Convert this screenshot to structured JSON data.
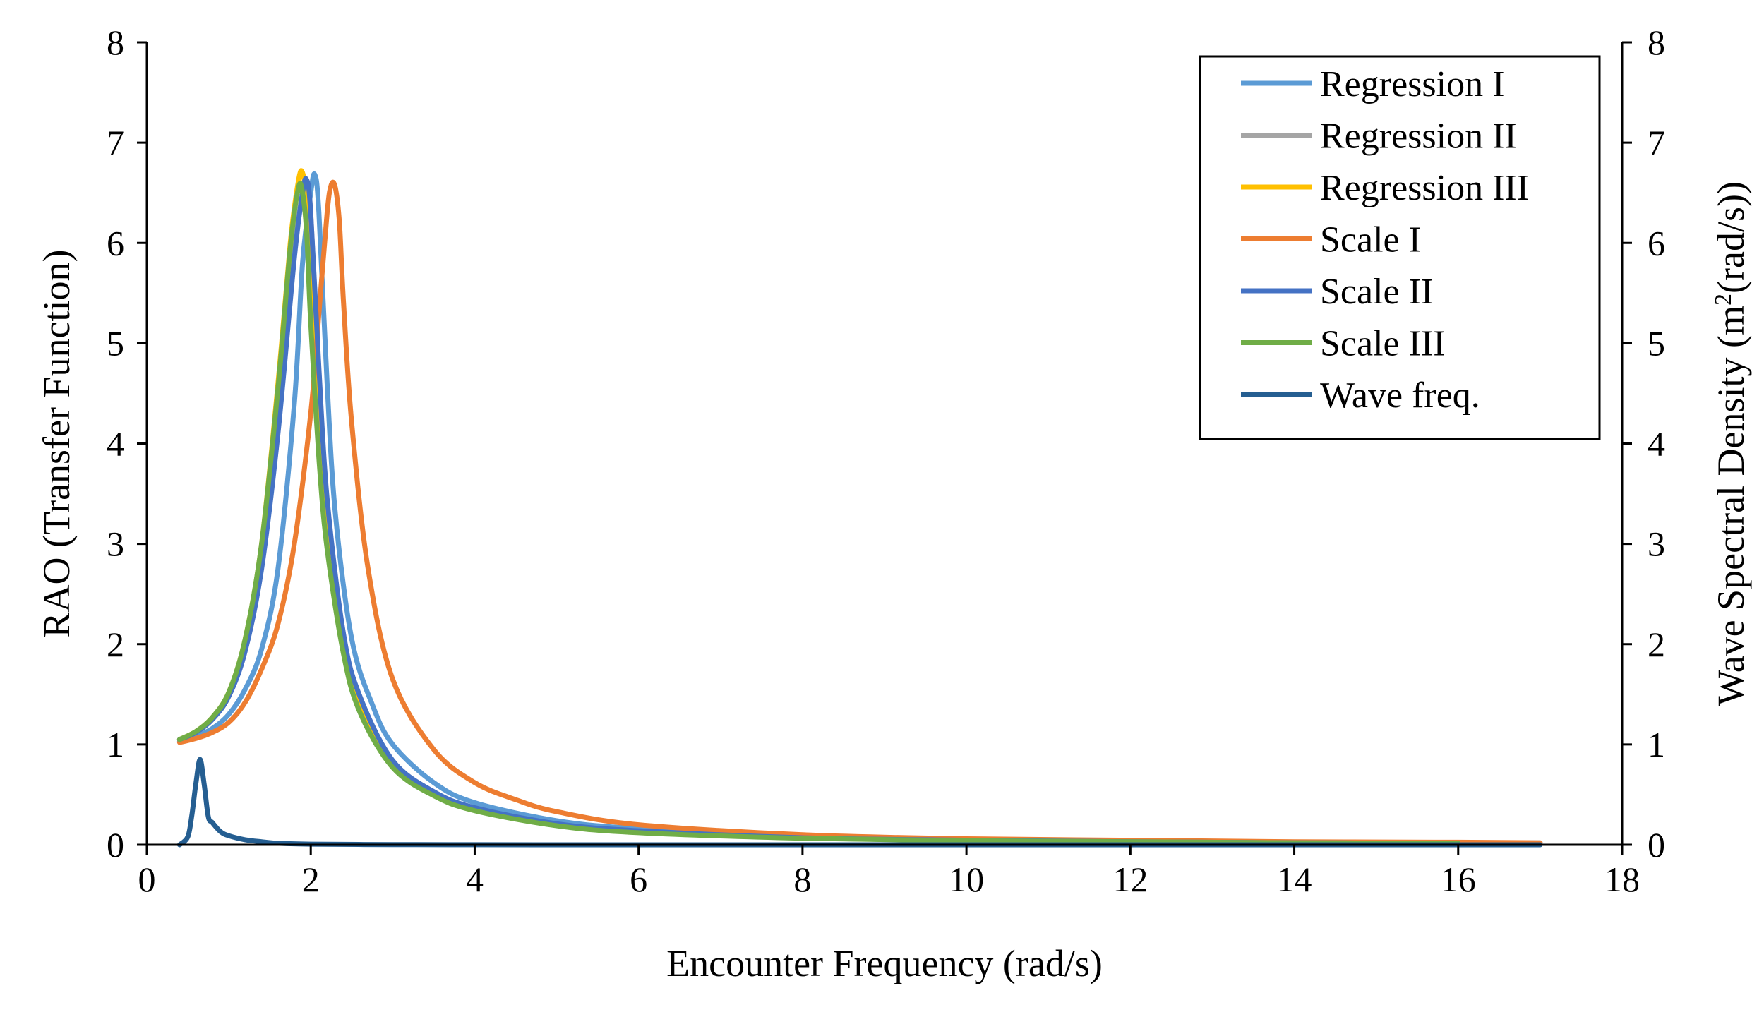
{
  "chart_data": {
    "type": "line",
    "title": "",
    "xlabel": "Encounter Frequency (rad/s)",
    "ylabel": "RAO (Transfer Function)",
    "y2label_main": "Wave Spectral Density (m",
    "y2label_sup": "2",
    "y2label_tail": "(rad/s))",
    "xlim": [
      0,
      18
    ],
    "ylim": [
      0,
      8
    ],
    "y2lim": [
      0,
      8
    ],
    "xticks": [
      0,
      2,
      4,
      6,
      8,
      10,
      12,
      14,
      16,
      18
    ],
    "yticks": [
      0,
      1,
      2,
      3,
      4,
      5,
      6,
      7,
      8
    ],
    "y2ticks": [
      0,
      1,
      2,
      3,
      4,
      5,
      6,
      7,
      8
    ],
    "legend_position": "top-right",
    "series": [
      {
        "name": "Regression I",
        "color": "#5B9BD5",
        "axis": "left",
        "x": [
          0.4,
          0.6,
          0.8,
          1.0,
          1.2,
          1.4,
          1.6,
          1.8,
          1.9,
          2.0,
          2.05,
          2.1,
          2.2,
          2.3,
          2.5,
          2.75,
          3.0,
          3.5,
          4.0,
          5.0,
          6.0,
          8.0,
          10.0,
          12.0,
          14.0,
          16.0,
          17.0
        ],
        "values": [
          1.03,
          1.08,
          1.16,
          1.3,
          1.55,
          1.95,
          2.75,
          4.4,
          5.8,
          6.5,
          6.68,
          6.3,
          4.6,
          3.3,
          2.05,
          1.4,
          1.0,
          0.62,
          0.42,
          0.24,
          0.16,
          0.08,
          0.05,
          0.035,
          0.025,
          0.02,
          0.02
        ]
      },
      {
        "name": "Regression II",
        "color": "#A5A5A5",
        "axis": "left",
        "x": [
          0.4,
          0.6,
          0.8,
          1.0,
          1.2,
          1.4,
          1.6,
          1.8,
          1.9,
          1.95,
          2.0,
          2.1,
          2.2,
          2.4,
          2.6,
          3.0,
          3.5,
          4.0,
          5.0,
          6.0,
          8.0,
          10.0,
          12.0,
          14.0,
          16.0
        ],
        "values": [
          1.05,
          1.12,
          1.25,
          1.48,
          1.95,
          2.8,
          4.2,
          5.9,
          6.5,
          6.6,
          6.3,
          4.7,
          3.4,
          2.05,
          1.45,
          0.82,
          0.52,
          0.36,
          0.2,
          0.13,
          0.07,
          0.04,
          0.03,
          0.02,
          0.015
        ]
      },
      {
        "name": "Regression III",
        "color": "#FFC000",
        "axis": "left",
        "x": [
          0.4,
          0.6,
          0.8,
          1.0,
          1.2,
          1.4,
          1.6,
          1.75,
          1.85,
          1.9,
          1.95,
          2.0,
          2.1,
          2.2,
          2.4,
          2.6,
          3.0,
          3.5,
          4.0,
          5.0,
          6.0,
          8.0,
          10.0,
          12.0,
          14.0,
          16.0
        ],
        "values": [
          1.05,
          1.13,
          1.27,
          1.52,
          2.05,
          3.0,
          4.6,
          6.0,
          6.62,
          6.7,
          6.4,
          5.6,
          4.1,
          3.1,
          1.95,
          1.35,
          0.78,
          0.5,
          0.35,
          0.2,
          0.13,
          0.07,
          0.04,
          0.03,
          0.02,
          0.015
        ]
      },
      {
        "name": "Scale I",
        "color": "#ED7D31",
        "axis": "left",
        "x": [
          0.4,
          0.6,
          0.8,
          1.0,
          1.2,
          1.4,
          1.6,
          1.8,
          2.0,
          2.1,
          2.2,
          2.25,
          2.3,
          2.35,
          2.4,
          2.5,
          2.7,
          3.0,
          3.5,
          4.0,
          4.5,
          5.0,
          6.0,
          8.0,
          10.0,
          12.0,
          14.0,
          16.0,
          17.0
        ],
        "values": [
          1.02,
          1.06,
          1.12,
          1.22,
          1.42,
          1.75,
          2.2,
          3.0,
          4.3,
          5.3,
          6.3,
          6.58,
          6.55,
          6.2,
          5.4,
          4.2,
          2.75,
          1.65,
          0.95,
          0.62,
          0.45,
          0.33,
          0.2,
          0.1,
          0.06,
          0.045,
          0.03,
          0.025,
          0.02
        ]
      },
      {
        "name": "Scale II",
        "color": "#4472C4",
        "axis": "left",
        "x": [
          0.4,
          0.6,
          0.8,
          1.0,
          1.2,
          1.4,
          1.6,
          1.8,
          1.9,
          1.95,
          2.0,
          2.1,
          2.2,
          2.4,
          2.6,
          3.0,
          3.5,
          4.0,
          5.0,
          6.0,
          8.0,
          10.0,
          12.0,
          14.0,
          16.0
        ],
        "values": [
          1.05,
          1.12,
          1.25,
          1.48,
          1.93,
          2.75,
          4.1,
          5.85,
          6.5,
          6.63,
          6.3,
          4.75,
          3.45,
          2.1,
          1.48,
          0.84,
          0.53,
          0.37,
          0.21,
          0.14,
          0.07,
          0.045,
          0.03,
          0.02,
          0.015
        ]
      },
      {
        "name": "Scale III",
        "color": "#70AD47",
        "axis": "left",
        "x": [
          0.4,
          0.6,
          0.8,
          1.0,
          1.2,
          1.4,
          1.6,
          1.75,
          1.85,
          1.9,
          1.95,
          2.0,
          2.1,
          2.2,
          2.4,
          2.6,
          3.0,
          3.5,
          4.0,
          5.0,
          6.0,
          8.0,
          10.0,
          12.0,
          14.0,
          16.0
        ],
        "values": [
          1.05,
          1.13,
          1.27,
          1.52,
          2.05,
          3.0,
          4.55,
          5.95,
          6.55,
          6.5,
          6.1,
          5.2,
          3.85,
          2.95,
          1.9,
          1.32,
          0.77,
          0.49,
          0.34,
          0.19,
          0.12,
          0.065,
          0.04,
          0.03,
          0.02,
          0.015
        ]
      },
      {
        "name": "Wave freq.",
        "color": "#255E91",
        "axis": "right",
        "x": [
          0.4,
          0.5,
          0.55,
          0.6,
          0.65,
          0.7,
          0.75,
          0.8,
          0.9,
          1.0,
          1.2,
          1.4,
          1.6,
          2.0,
          3.0,
          4.0,
          6.0,
          8.0,
          10.0,
          12.0,
          14.0,
          16.0,
          17.0
        ],
        "values": [
          0.0,
          0.08,
          0.3,
          0.62,
          0.85,
          0.6,
          0.28,
          0.22,
          0.13,
          0.09,
          0.05,
          0.03,
          0.015,
          0.006,
          0.002,
          0.001,
          0.0,
          0.0,
          0.0,
          0.0,
          0.0,
          0.0,
          0.0
        ]
      }
    ]
  }
}
